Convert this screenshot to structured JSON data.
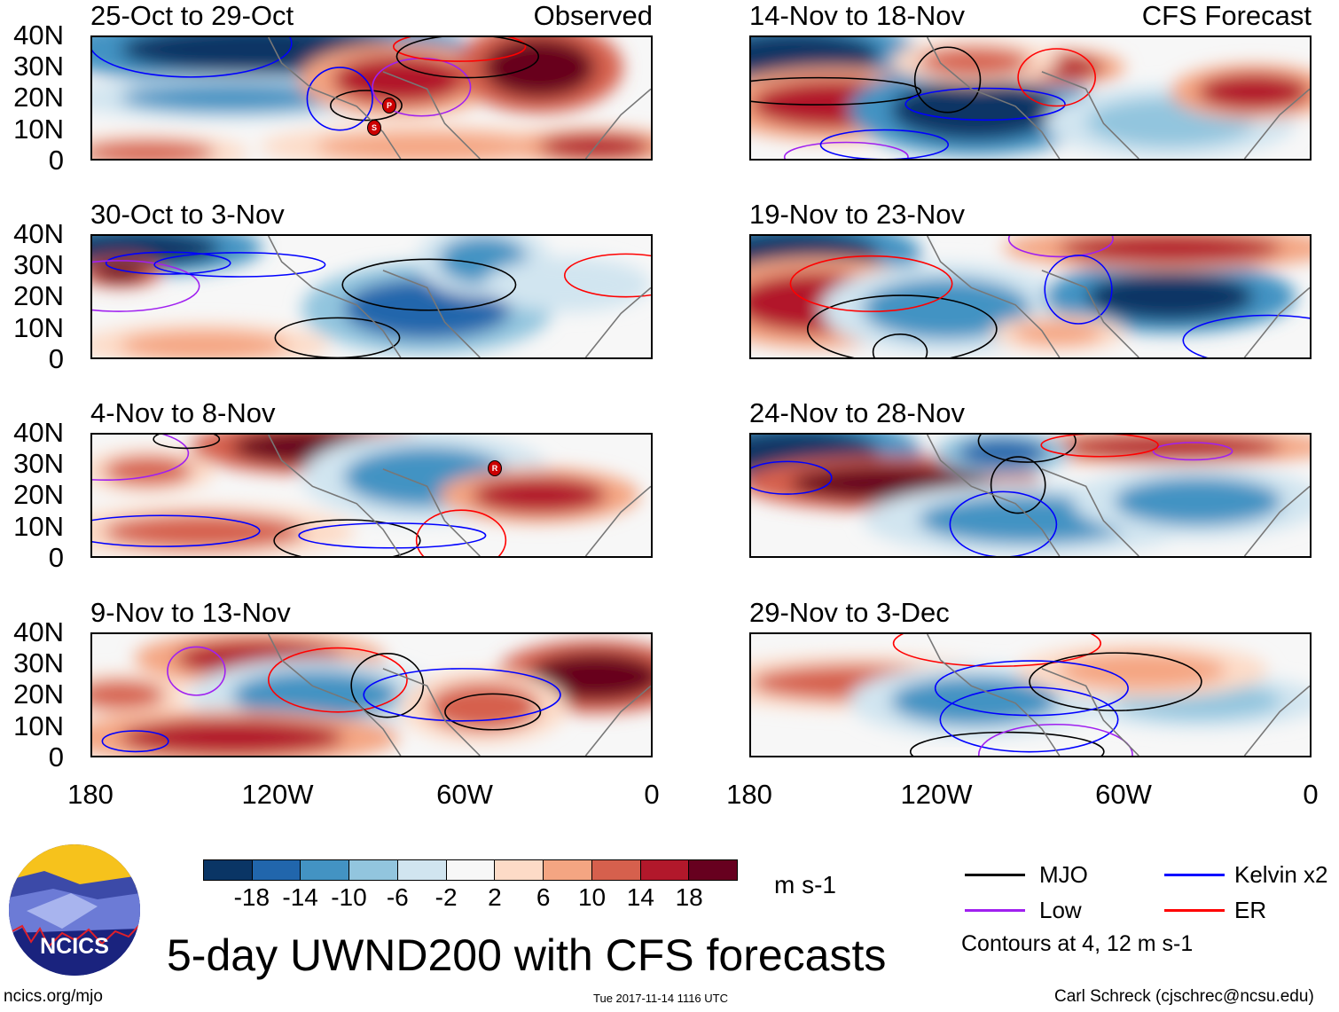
{
  "panels": [
    {
      "title": "25-Oct to 29-Oct",
      "tag": "Observed"
    },
    {
      "title": "14-Nov to 18-Nov",
      "tag": "CFS Forecast"
    },
    {
      "title": "30-Oct to 3-Nov",
      "tag": ""
    },
    {
      "title": "19-Nov to 23-Nov",
      "tag": ""
    },
    {
      "title": "4-Nov to 8-Nov",
      "tag": ""
    },
    {
      "title": "24-Nov to 28-Nov",
      "tag": ""
    },
    {
      "title": "9-Nov to 13-Nov",
      "tag": ""
    },
    {
      "title": "29-Nov to 3-Dec",
      "tag": ""
    }
  ],
  "lat_labels": [
    "40N",
    "30N",
    "20N",
    "10N",
    "0"
  ],
  "lon_labels": [
    "180",
    "120W",
    "60W",
    "0"
  ],
  "colorbar": {
    "colors": [
      "#0a3565",
      "#2166ac",
      "#4393c3",
      "#92c5de",
      "#d1e5f0",
      "#f7f7f7",
      "#fddbc7",
      "#f4a582",
      "#d6604d",
      "#b2182b",
      "#67001f"
    ],
    "labels": [
      "-18",
      "-14",
      "-10",
      "-6",
      "-2",
      "2",
      "6",
      "10",
      "14",
      "18"
    ],
    "units": "m s-1"
  },
  "legend": {
    "items": [
      {
        "label": "MJO",
        "color": "#000000"
      },
      {
        "label": "Kelvin x2",
        "color": "#0000ff"
      },
      {
        "label": "Low",
        "color": "#a020f0"
      },
      {
        "label": "ER",
        "color": "#ff0000"
      }
    ],
    "contours_note": "Contours at 4, 12 m s-1"
  },
  "title": "5-day UWND200 with CFS forecasts",
  "logo_text": "NCICS",
  "footer": {
    "url": "ncics.org/mjo",
    "timestamp": "Tue 2017-11-14 1116 UTC",
    "author": "Carl Schreck (cjschrec@ncsu.edu)"
  },
  "storm_markers": [
    "P",
    "S",
    "R"
  ]
}
